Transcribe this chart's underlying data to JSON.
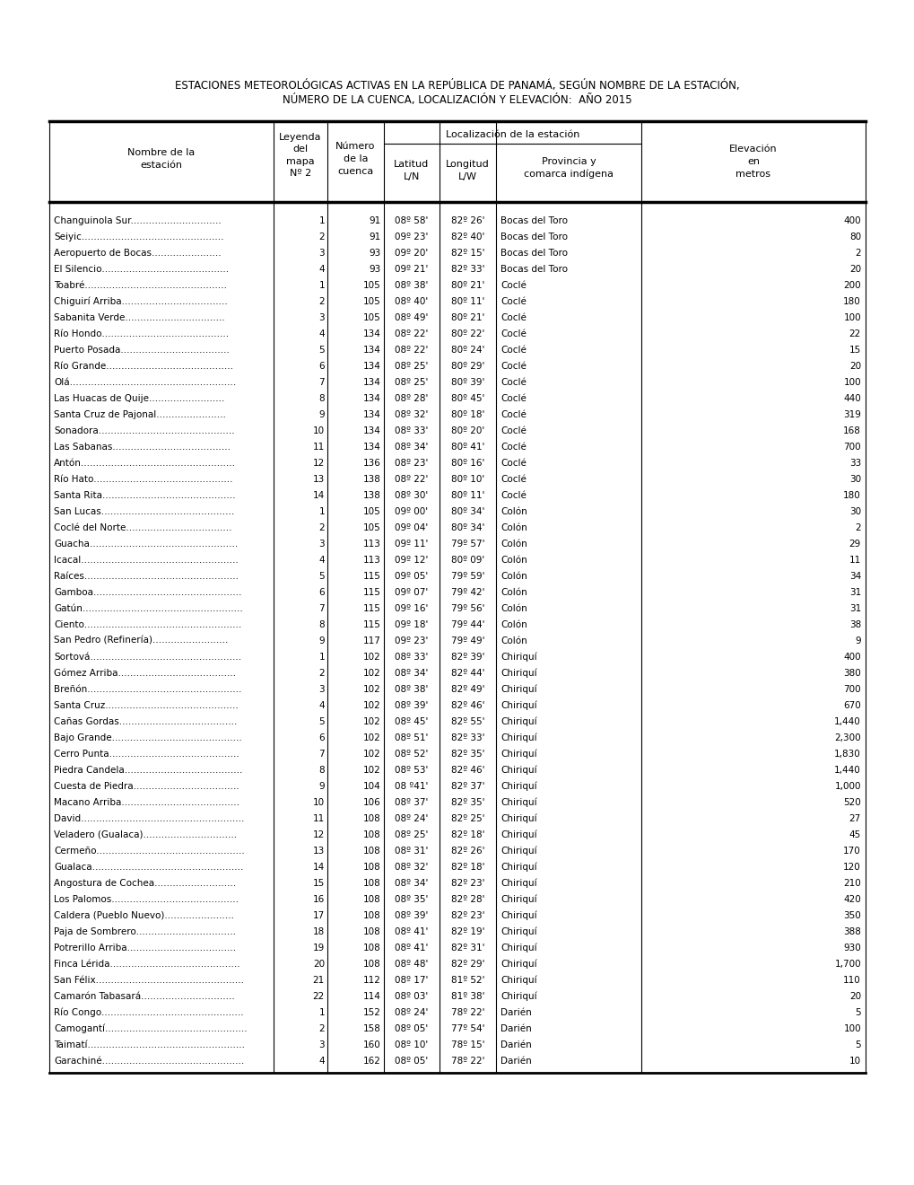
{
  "title_line1": "ESTACIONES METEOROLÓGICAS ACTIVAS EN LA REPÚBLICA DE PANAMÁ, SEGÚN NOMBRE DE LA ESTACIÓN,",
  "title_line2": "NÚMERO DE LA CUENCA, LOCALIZACIÓN Y ELEVACIÓN:  AÑO 2015",
  "col_headers": [
    "Nombre de la\nestación",
    "Leyenda\ndel\nmapa\nNº 2",
    "Número\nde la\ncuenca",
    "Latitud\nL/N",
    "Longitud\nL/W",
    "Provincia y\ncomarca indígena",
    "Elevación\nen\nmetros"
  ],
  "localizacion_header": "Localización de la estación",
  "rows": [
    [
      "Changuinola Sur..............................",
      "1",
      "91",
      "08º 58'",
      "82º 26'",
      "Bocas del Toro",
      "400"
    ],
    [
      "Seiyic...............................................",
      "2",
      "91",
      "09º 23'",
      "82º 40'",
      "Bocas del Toro",
      "80"
    ],
    [
      "Aeropuerto de Bocas.......................",
      "3",
      "93",
      "09º 20'",
      "82º 15'",
      "Bocas del Toro",
      "2"
    ],
    [
      "El Silencio..........................................",
      "4",
      "93",
      "09º 21'",
      "82º 33'",
      "Bocas del Toro",
      "20"
    ],
    [
      "Toabré...............................................",
      "1",
      "105",
      "08º 38'",
      "80º 21'",
      "Coclé",
      "200"
    ],
    [
      "Chiguirí Arriba...................................",
      "2",
      "105",
      "08º 40'",
      "80º 11'",
      "Coclé",
      "180"
    ],
    [
      "Sabanita Verde.................................",
      "3",
      "105",
      "08º 49'",
      "80º 21'",
      "Coclé",
      "100"
    ],
    [
      "Río Hondo..........................................",
      "4",
      "134",
      "08º 22'",
      "80º 22'",
      "Coclé",
      "22"
    ],
    [
      "Puerto Posada....................................",
      "5",
      "134",
      "08º 22'",
      "80º 24'",
      "Coclé",
      "15"
    ],
    [
      "Río Grande..........................................",
      "6",
      "134",
      "08º 25'",
      "80º 29'",
      "Coclé",
      "20"
    ],
    [
      "Olá.......................................................",
      "7",
      "134",
      "08º 25'",
      "80º 39'",
      "Coclé",
      "100"
    ],
    [
      "Las Huacas de Quije.........................",
      "8",
      "134",
      "08º 28'",
      "80º 45'",
      "Coclé",
      "440"
    ],
    [
      "Santa Cruz de Pajonal.......................",
      "9",
      "134",
      "08º 32'",
      "80º 18'",
      "Coclé",
      "319"
    ],
    [
      "Sonadora.............................................",
      "10",
      "134",
      "08º 33'",
      "80º 20'",
      "Coclé",
      "168"
    ],
    [
      "Las Sabanas.......................................",
      "11",
      "134",
      "08º 34'",
      "80º 41'",
      "Coclé",
      "700"
    ],
    [
      "Antón...................................................",
      "12",
      "136",
      "08º 23'",
      "80º 16'",
      "Coclé",
      "33"
    ],
    [
      "Río Hato..............................................",
      "13",
      "138",
      "08º 22'",
      "80º 10'",
      "Coclé",
      "30"
    ],
    [
      "Santa Rita............................................",
      "14",
      "138",
      "08º 30'",
      "80º 11'",
      "Coclé",
      "180"
    ],
    [
      "San Lucas............................................",
      "1",
      "105",
      "09º 00'",
      "80º 34'",
      "Colón",
      "30"
    ],
    [
      "Coclé del Norte...................................",
      "2",
      "105",
      "09º 04'",
      "80º 34'",
      "Colón",
      "2"
    ],
    [
      "Guacha.................................................",
      "3",
      "113",
      "09º 11'",
      "79º 57'",
      "Colón",
      "29"
    ],
    [
      "Icacal....................................................",
      "4",
      "113",
      "09º 12'",
      "80º 09'",
      "Colón",
      "11"
    ],
    [
      "Raíces...................................................",
      "5",
      "115",
      "09º 05'",
      "79º 59'",
      "Colón",
      "34"
    ],
    [
      "Gamboa.................................................",
      "6",
      "115",
      "09º 07'",
      "79º 42'",
      "Colón",
      "31"
    ],
    [
      "Gatún.....................................................",
      "7",
      "115",
      "09º 16'",
      "79º 56'",
      "Colón",
      "31"
    ],
    [
      "Ciento....................................................",
      "8",
      "115",
      "09º 18'",
      "79º 44'",
      "Colón",
      "38"
    ],
    [
      "San Pedro (Refinería).........................",
      "9",
      "117",
      "09º 23'",
      "79º 49'",
      "Colón",
      "9"
    ],
    [
      "Sortová..................................................",
      "1",
      "102",
      "08º 33'",
      "82º 39'",
      "Chiriquí",
      "400"
    ],
    [
      "Gómez Arriba.......................................",
      "2",
      "102",
      "08º 34'",
      "82º 44'",
      "Chiriquí",
      "380"
    ],
    [
      "Breñón...................................................",
      "3",
      "102",
      "08º 38'",
      "82º 49'",
      "Chiriquí",
      "700"
    ],
    [
      "Santa Cruz............................................",
      "4",
      "102",
      "08º 39'",
      "82º 46'",
      "Chiriquí",
      "670"
    ],
    [
      "Cañas Gordas.......................................",
      "5",
      "102",
      "08º 45'",
      "82º 55'",
      "Chiriquí",
      "1,440"
    ],
    [
      "Bajo Grande...........................................",
      "6",
      "102",
      "08º 51'",
      "82º 33'",
      "Chiriquí",
      "2,300"
    ],
    [
      "Cerro Punta...........................................",
      "7",
      "102",
      "08º 52'",
      "82º 35'",
      "Chiriquí",
      "1,830"
    ],
    [
      "Piedra Candela.......................................",
      "8",
      "102",
      "08º 53'",
      "82º 46'",
      "Chiriquí",
      "1,440"
    ],
    [
      "Cuesta de Piedra...................................",
      "9",
      "104",
      "08 º41'",
      "82º 37'",
      "Chiriquí",
      "1,000"
    ],
    [
      "Macano Arriba.......................................",
      "10",
      "106",
      "08º 37'",
      "82º 35'",
      "Chiriquí",
      "520"
    ],
    [
      "David......................................................",
      "11",
      "108",
      "08º 24'",
      "82º 25'",
      "Chiriquí",
      "27"
    ],
    [
      "Veladero (Gualaca)...............................",
      "12",
      "108",
      "08º 25'",
      "82º 18'",
      "Chiriquí",
      "45"
    ],
    [
      "Cermeño.................................................",
      "13",
      "108",
      "08º 31'",
      "82º 26'",
      "Chiriquí",
      "170"
    ],
    [
      "Gualaca..................................................",
      "14",
      "108",
      "08º 32'",
      "82º 18'",
      "Chiriquí",
      "120"
    ],
    [
      "Angostura de Cochea...........................",
      "15",
      "108",
      "08º 34'",
      "82º 23'",
      "Chiriquí",
      "210"
    ],
    [
      "Los Palomos..........................................",
      "16",
      "108",
      "08º 35'",
      "82º 28'",
      "Chiriquí",
      "420"
    ],
    [
      "Caldera (Pueblo Nuevo).......................",
      "17",
      "108",
      "08º 39'",
      "82º 23'",
      "Chiriquí",
      "350"
    ],
    [
      "Paja de Sombrero.................................",
      "18",
      "108",
      "08º 41'",
      "82º 19'",
      "Chiriquí",
      "388"
    ],
    [
      "Potrerillo Arriba....................................",
      "19",
      "108",
      "08º 41'",
      "82º 31'",
      "Chiriquí",
      "930"
    ],
    [
      "Finca Lérida...........................................",
      "20",
      "108",
      "08º 48'",
      "82º 29'",
      "Chiriquí",
      "1,700"
    ],
    [
      "San Félix.................................................",
      "21",
      "112",
      "08º 17'",
      "81º 52'",
      "Chiriquí",
      "110"
    ],
    [
      "Camarón Tabasará...............................",
      "22",
      "114",
      "08º 03'",
      "81º 38'",
      "Chiriquí",
      "20"
    ],
    [
      "Río Congo...............................................",
      "1",
      "152",
      "08º 24'",
      "78º 22'",
      "Darién",
      "5"
    ],
    [
      "Camogantí...............................................",
      "2",
      "158",
      "08º 05'",
      "77º 54'",
      "Darién",
      "100"
    ],
    [
      "Taimatí....................................................",
      "3",
      "160",
      "08º 10'",
      "78º 15'",
      "Darién",
      "5"
    ],
    [
      "Garachiné...............................................",
      "4",
      "162",
      "08º 05'",
      "78º 22'",
      "Darién",
      "10"
    ]
  ],
  "background_color": "#ffffff",
  "text_color": "#000000",
  "title_fontsize": 8.5,
  "header_fontsize": 8,
  "data_fontsize": 7.5
}
